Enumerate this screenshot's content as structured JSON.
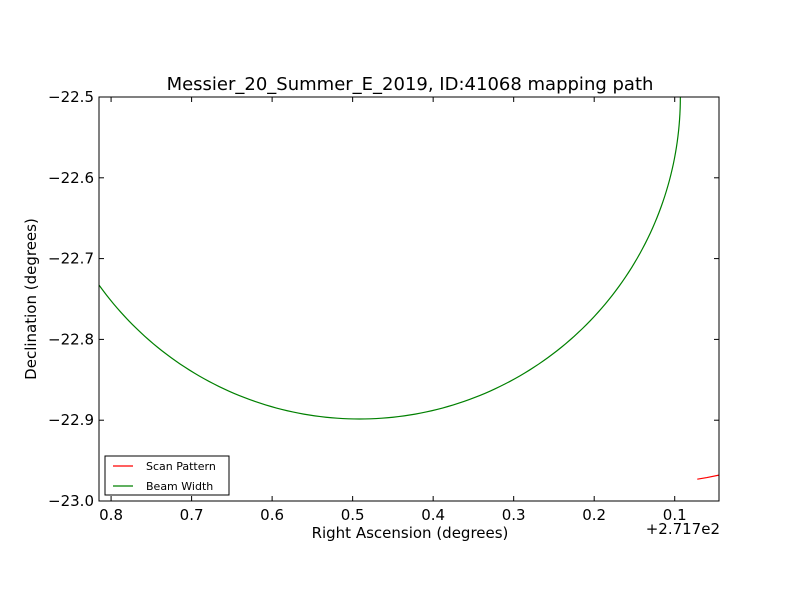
{
  "chart_data": {
    "type": "line",
    "title": "Messier_20_Summer_E_2019, ID:41068 mapping path",
    "xlabel": "Right Ascension (degrees)",
    "ylabel": "Declination (degrees)",
    "x_offset_label": "+2.717e2",
    "xlim": [
      0.815,
      0.045
    ],
    "ylim": [
      -23.0,
      -22.5
    ],
    "xticks": [
      0.8,
      0.7,
      0.6,
      0.5,
      0.4,
      0.3,
      0.2,
      0.1
    ],
    "xtick_labels": [
      "0.8",
      "0.7",
      "0.6",
      "0.5",
      "0.4",
      "0.3",
      "0.2",
      "0.1"
    ],
    "yticks": [
      -23.0,
      -22.9,
      -22.8,
      -22.7,
      -22.6,
      -22.5
    ],
    "ytick_labels": [
      "−23.0",
      "−22.9",
      "−22.8",
      "−22.7",
      "−22.6",
      "−22.5"
    ],
    "grid": false,
    "legend_position": "lower-left",
    "series": [
      {
        "name": "Scan Pattern",
        "color": "#ff0000",
        "x": [
          0.072,
          0.06,
          0.045
        ],
        "y": [
          -22.973,
          -22.971,
          -22.968
        ]
      },
      {
        "name": "Beam Width",
        "color": "#008000",
        "circle": {
          "center_x": 0.4915,
          "center_y": -22.5,
          "radius": 0.3985
        }
      }
    ]
  }
}
